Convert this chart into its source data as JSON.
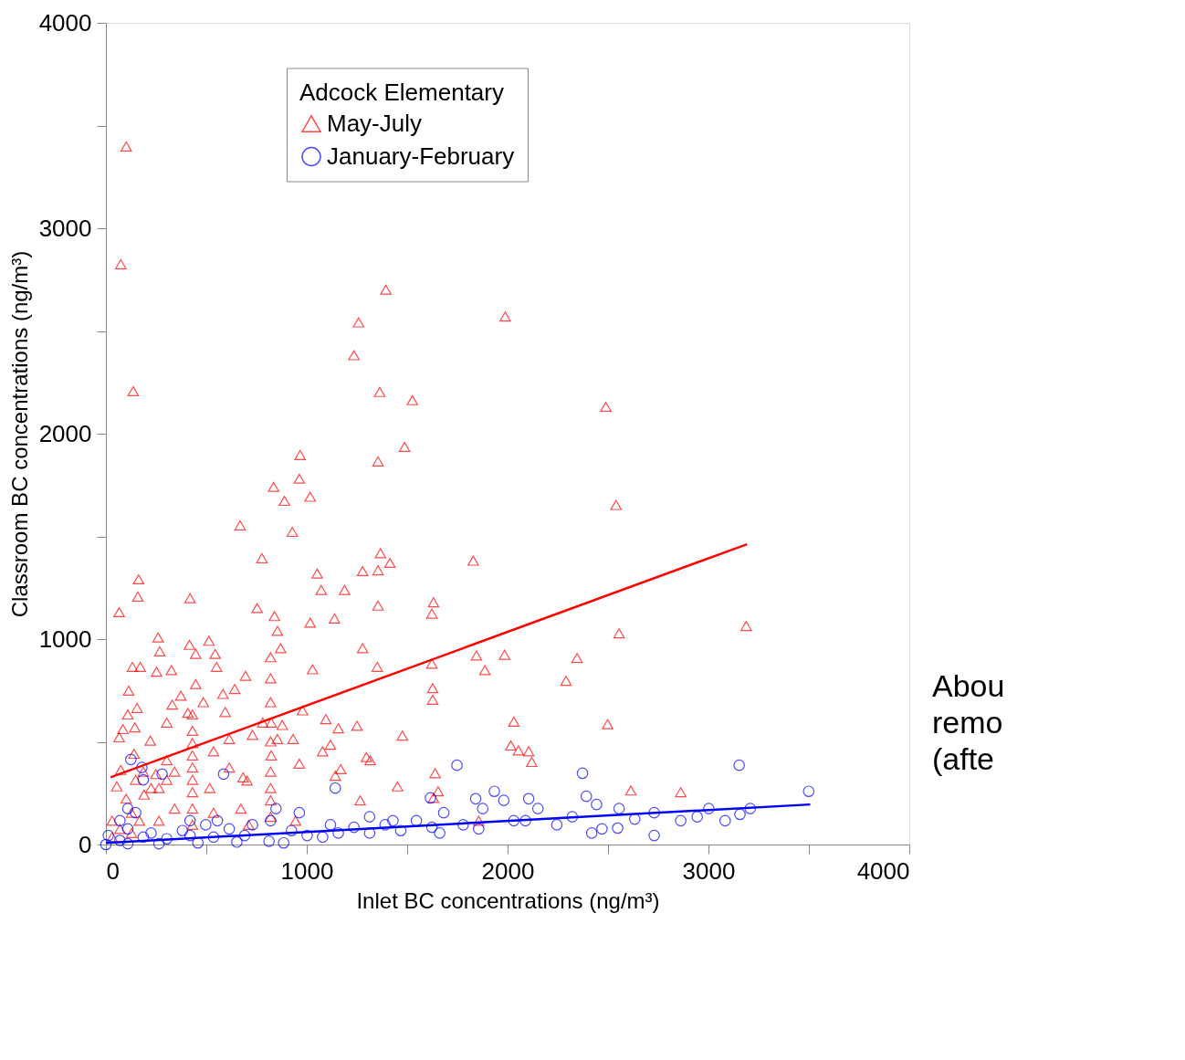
{
  "chart_data": {
    "type": "scatter",
    "xlabel": "Inlet BC concentrations (ng/m³)",
    "ylabel": "Classroom BC concentrations (ng/m³)",
    "legend_title": "Adcock Elementary",
    "legend": "top",
    "grid": false,
    "xlim": [
      0,
      4000
    ],
    "ylim": [
      0,
      4000
    ],
    "xticks": [
      0,
      {
        "value": 500,
        "label": null
      },
      1000,
      {
        "value": 1500,
        "label": null
      },
      2000,
      {
        "value": 2500,
        "label": null
      },
      3000,
      {
        "value": 3500,
        "label": null
      },
      4000
    ],
    "yticks": [
      0,
      {
        "value": 500,
        "label": null
      },
      1000,
      {
        "value": 1500,
        "label": null
      },
      2000,
      {
        "value": 2500,
        "label": null
      },
      3000,
      {
        "value": 3500,
        "label": null
      },
      4000
    ],
    "annotations": [
      "Abou\nremo\n(afte"
    ],
    "series": [
      {
        "name": "May-July",
        "color": "#ff0000",
        "marker": "triangle",
        "x": [
          101,
          74,
          136,
          1394,
          1258,
          1988,
          1235,
          1363,
          1526,
          2489,
          1487,
          967,
          1355,
          963,
          835,
          889,
          1017,
          2540,
          928,
          668,
          777,
          1278,
          1367,
          1414,
          1355,
          1829,
          163,
          159,
          66,
          419,
          1052,
          1072,
          1188,
          1355,
          1631,
          1623,
          753,
          839,
          854,
          870,
          1017,
          1351,
          1278,
          1985,
          2346,
          2555,
          3188,
          1845,
          1887,
          2291,
          1623,
          1627,
          1627,
          1138,
          1029,
          132,
          171,
          260,
          268,
          326,
          252,
          513,
          416,
          447,
          551,
          695,
          544,
          447,
          373,
          330,
          113,
          109,
          155,
          144,
          85,
          66,
          140,
          74,
          54,
          101,
          190,
          249,
          303,
          221,
          303,
          408,
          485,
          583,
          641,
          594,
          614,
          730,
          781,
          683,
          703,
          854,
          878,
          932,
          963,
          979,
          1095,
          1079,
          1118,
          1157,
          1169,
          1142,
          1250,
          1297,
          1316,
          1452,
          1266,
          1476,
          1639,
          1654,
          1631,
          2031,
          2016,
          2054,
          2105,
          2120,
          2498,
          2614,
          2862,
          1856,
          820,
          820,
          820,
          823,
          820,
          823,
          820,
          820,
          820,
          820,
          431,
          431,
          431,
          431,
          431,
          431,
          431,
          431,
          431,
          536,
          614,
          303,
          225,
          342,
          536,
          672,
          711,
          944,
          167,
          70,
          31,
          128,
          264,
          186,
          148,
          264,
          342,
          517,
          128,
          31
        ],
        "values": [
          3398,
          2825,
          2207,
          2701,
          2542,
          2570,
          2382,
          2203,
          2163,
          2131,
          1936,
          1896,
          1865,
          1781,
          1741,
          1673,
          1693,
          1653,
          1522,
          1554,
          1394,
          1331,
          1418,
          1371,
          1335,
          1382,
          1291,
          1207,
          1131,
          1199,
          1319,
          1239,
          1239,
          1163,
          1179,
          1124,
          1151,
          1112,
          1040,
          956,
          1080,
          865,
          956,
          924,
          908,
          1028,
          1064,
          920,
          849,
          797,
          880,
          761,
          705,
          1100,
          853,
          865,
          865,
          1008,
          940,
          849,
          841,
          992,
          972,
          928,
          865,
          821,
          928,
          781,
          725,
          681,
          749,
          633,
          665,
          570,
          562,
          522,
          442,
          363,
          283,
          223,
          243,
          343,
          410,
          506,
          594,
          641,
          693,
          733,
          757,
          645,
          514,
          534,
          594,
          327,
          311,
          514,
          582,
          514,
          394,
          653,
          610,
          454,
          486,
          566,
          367,
          335,
          578,
          426,
          410,
          283,
          215,
          530,
          347,
          259,
          227,
          598,
          482,
          458,
          454,
          402,
          586,
          263,
          255,
          116,
          912,
          809,
          693,
          594,
          502,
          434,
          355,
          275,
          215,
          135,
          633,
          554,
          494,
          434,
          375,
          315,
          255,
          175,
          96,
          454,
          375,
          315,
          275,
          175,
          155,
          175,
          96,
          116,
          116,
          76,
          36,
          56,
          116,
          355,
          315,
          275,
          355,
          275,
          155,
          116
        ]
      },
      {
        "name": "January-February",
        "color": "#0000ff",
        "marker": "circle",
        "x": [
          1748,
          3153,
          2373,
          586,
          280,
          124,
          179,
          186,
          1142,
          1934,
          3499,
          1616,
          1841,
          1981,
          2105,
          2392,
          2443,
          3002,
          3208,
          2555,
          2151,
          2730,
          2862,
          2944,
          3083,
          3157,
          2730,
          2419,
          2548,
          2245,
          2031,
          1856,
          1662,
          1468,
          1313,
          1157,
          1002,
          963,
          847,
          820,
          812,
          691,
          536,
          419,
          303,
          186,
          70,
          12,
          0,
          109,
          264,
          458,
          652,
          885,
          1079,
          1235,
          1390,
          1546,
          1779,
          2089,
          2322,
          2633,
          70,
          148,
          109,
          225,
          381,
          497,
          614,
          730,
          924,
          1118,
          1313,
          1429,
          1623,
          1876,
          1682,
          2470,
          109,
          419,
          555
        ],
        "values": [
          386,
          386,
          347,
          343,
          343,
          414,
          375,
          315,
          275,
          259,
          259,
          227,
          223,
          215,
          223,
          235,
          195,
          175,
          175,
          175,
          175,
          155,
          116,
          135,
          116,
          147,
          44,
          56,
          80,
          96,
          116,
          76,
          56,
          68,
          56,
          56,
          44,
          155,
          175,
          116,
          16,
          44,
          36,
          44,
          28,
          36,
          20,
          44,
          0,
          4,
          4,
          8,
          12,
          8,
          36,
          84,
          96,
          116,
          96,
          116,
          135,
          124,
          116,
          155,
          76,
          56,
          68,
          96,
          76,
          96,
          68,
          96,
          135,
          116,
          84,
          175,
          155,
          76,
          175,
          116,
          116
        ]
      },
      {
        "type": "line",
        "color": "#ff0000",
        "line_style": "solid",
        "x": [
          23,
          3192
        ],
        "values": [
          327,
          1462
        ]
      },
      {
        "type": "line",
        "color": "#0000ff",
        "line_style": "solid",
        "x": [
          0,
          3507
        ],
        "values": [
          8,
          195
        ]
      }
    ]
  }
}
